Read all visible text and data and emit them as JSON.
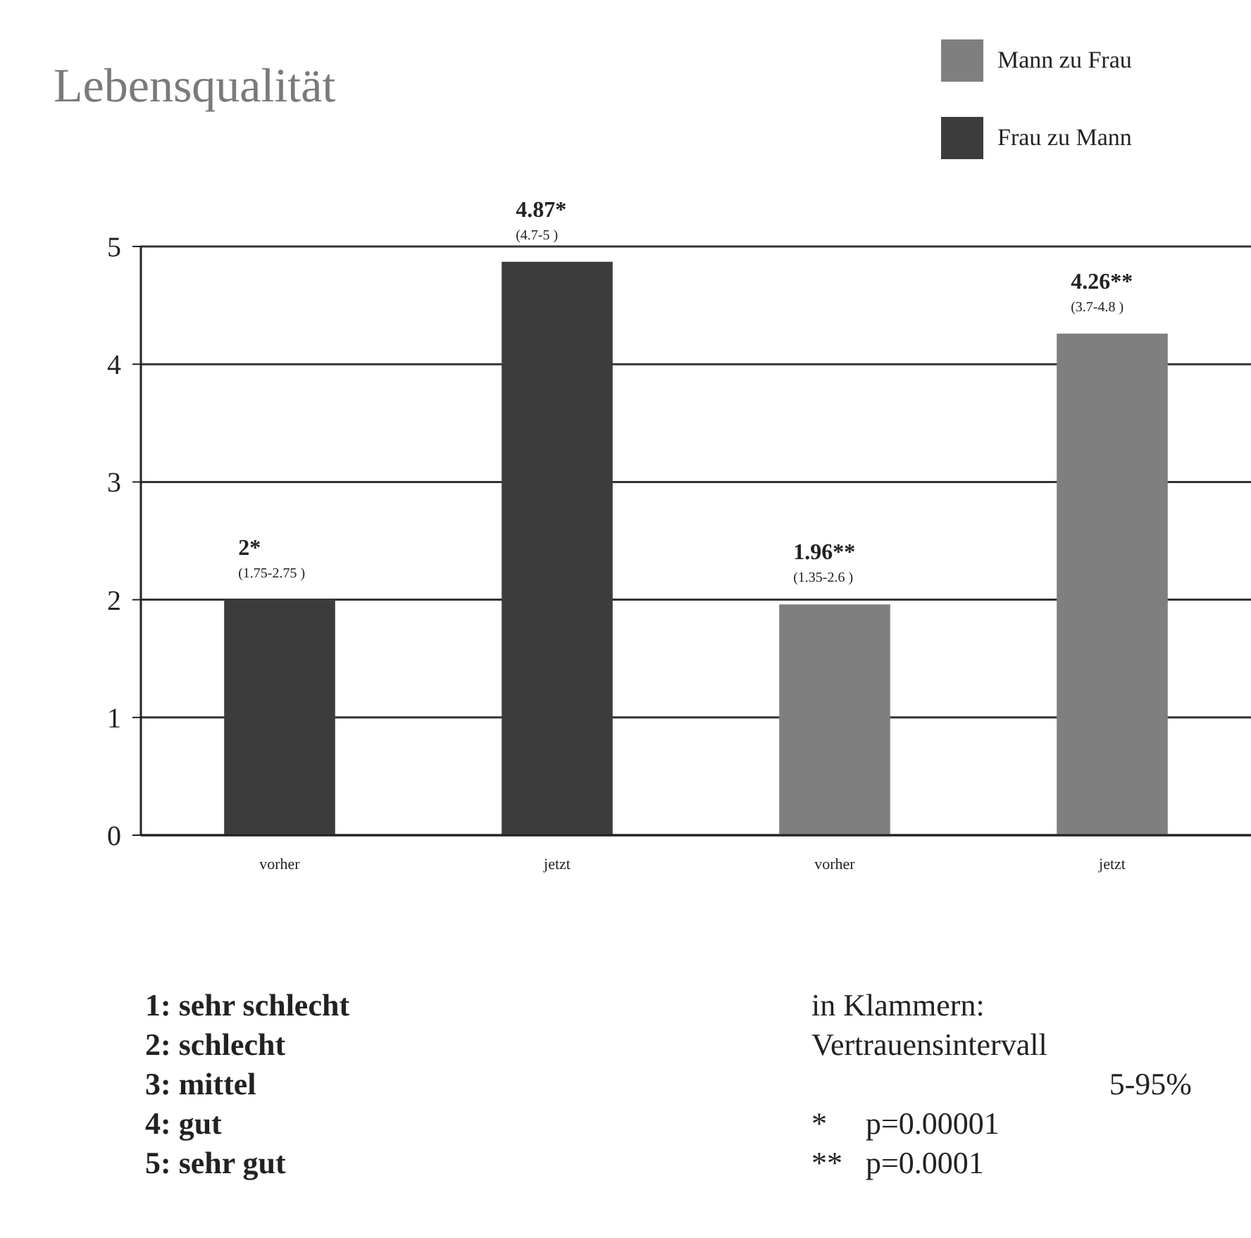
{
  "chart_data": {
    "type": "bar",
    "title": "Lebensqualität",
    "categories": [
      "vorher",
      "jetzt",
      "vorher",
      "jetzt"
    ],
    "series": [
      {
        "name": "Mann zu Frau",
        "color": "#7f7f7f",
        "values": [
          null,
          null,
          1.96,
          4.26
        ],
        "value_labels": [
          null,
          null,
          "1.96**\n(1.35-2.6 )",
          "4.26**\n(3.7-4.8 )"
        ]
      },
      {
        "name": "Frau zu Mann",
        "color": "#3c3c3c",
        "values": [
          2,
          4.87,
          null,
          null
        ],
        "value_labels": [
          "2*\n(1.75-2.75 )",
          "4.87*\n(4.7-5 )",
          null,
          null
        ]
      }
    ],
    "ylim": [
      0,
      5
    ],
    "yticks": [
      0,
      1,
      2,
      3,
      4,
      5
    ],
    "grid": "y",
    "legend": "top right",
    "annotations": [
      "1: sehr schlecht",
      "2: schlecht",
      "3: mittel",
      "4: gut",
      "5: sehr gut",
      "in Klammern:",
      "Vertrauensintervall",
      "5-95%",
      "*     p=0.00001",
      "**   p=0.0001"
    ]
  }
}
